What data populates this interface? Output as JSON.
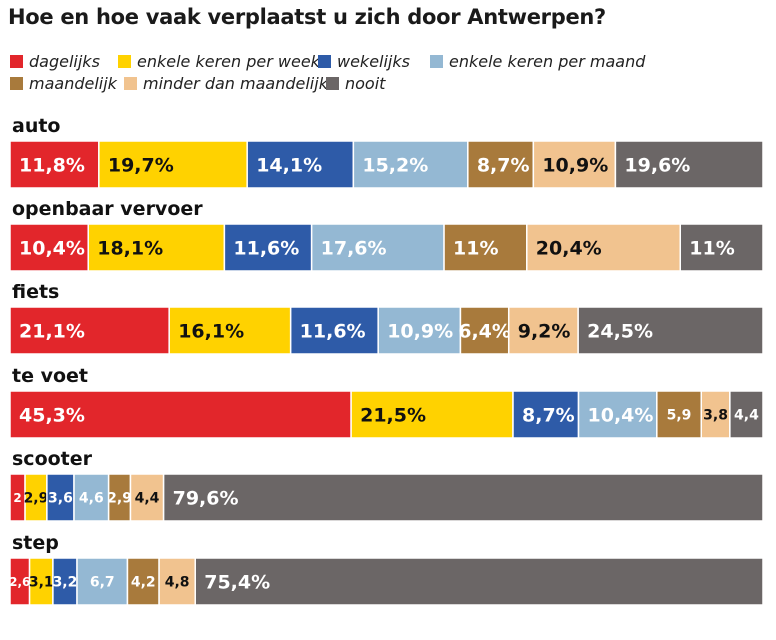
{
  "title": "Hoe en hoe vaak verplaatst u zich door Antwerpen?",
  "chart_data": {
    "type": "bar",
    "orientation": "horizontal",
    "stacked": true,
    "title": "Hoe en hoe vaak verplaatst u zich door Antwerpen?",
    "xlabel": "",
    "ylabel": "",
    "legend_position": "top",
    "categories": [
      "auto",
      "openbaar vervoer",
      "fiets",
      "te voet",
      "scooter",
      "step"
    ],
    "series": [
      {
        "name": "dagelijks",
        "color": "#e2262b",
        "values": [
          11.8,
          10.4,
          21.1,
          45.3,
          2,
          2.6
        ],
        "labels": [
          "11,8%",
          "10,4%",
          "21,1%",
          "45,3%",
          "2",
          "2,6"
        ]
      },
      {
        "name": "enkele keren per week",
        "color": "#ffd200",
        "values": [
          19.7,
          18.1,
          16.1,
          21.5,
          2.9,
          3.1
        ],
        "labels": [
          "19,7%",
          "18,1%",
          "16,1%",
          "21,5%",
          "2,9",
          "3,1"
        ]
      },
      {
        "name": "wekelijks",
        "color": "#2e5ba8",
        "values": [
          14.1,
          11.6,
          11.6,
          8.7,
          3.6,
          3.2
        ],
        "labels": [
          "14,1%",
          "11,6%",
          "11,6%",
          "8,7%",
          "3,6",
          "3,2"
        ]
      },
      {
        "name": "enkele keren per maand",
        "color": "#94b8d3",
        "values": [
          15.2,
          17.6,
          10.9,
          10.4,
          4.6,
          6.7
        ],
        "labels": [
          "15,2%",
          "17,6%",
          "10,9%",
          "10,4%",
          "4,6",
          "6,7"
        ]
      },
      {
        "name": "maandelijk",
        "color": "#a87a3c",
        "values": [
          8.7,
          11,
          6.4,
          5.9,
          2.9,
          4.2
        ],
        "labels": [
          "8,7%",
          "11%",
          "6,4%",
          "5,9",
          "2,9",
          "4,2"
        ]
      },
      {
        "name": "minder dan maandelijks",
        "color": "#f1c38f",
        "values": [
          10.9,
          20.4,
          9.2,
          3.8,
          4.4,
          4.8
        ],
        "labels": [
          "10,9%",
          "20,4%",
          "9,2%",
          "3,8",
          "4,4",
          "4,8"
        ]
      },
      {
        "name": "nooit",
        "color": "#6b6666",
        "values": [
          19.6,
          11,
          24.5,
          4.4,
          79.6,
          75.4
        ],
        "labels": [
          "19,6%",
          "11%",
          "24,5%",
          "4,4",
          "79,6%",
          "75,4%"
        ]
      }
    ],
    "label_colors": {
      "dagelijks": "#ffffff",
      "enkele keren per week": "#111111",
      "wekelijks": "#ffffff",
      "enkele keren per maand": "#ffffff",
      "maandelijk": "#ffffff",
      "minder dan maandelijks": "#111111",
      "nooit": "#ffffff"
    }
  }
}
